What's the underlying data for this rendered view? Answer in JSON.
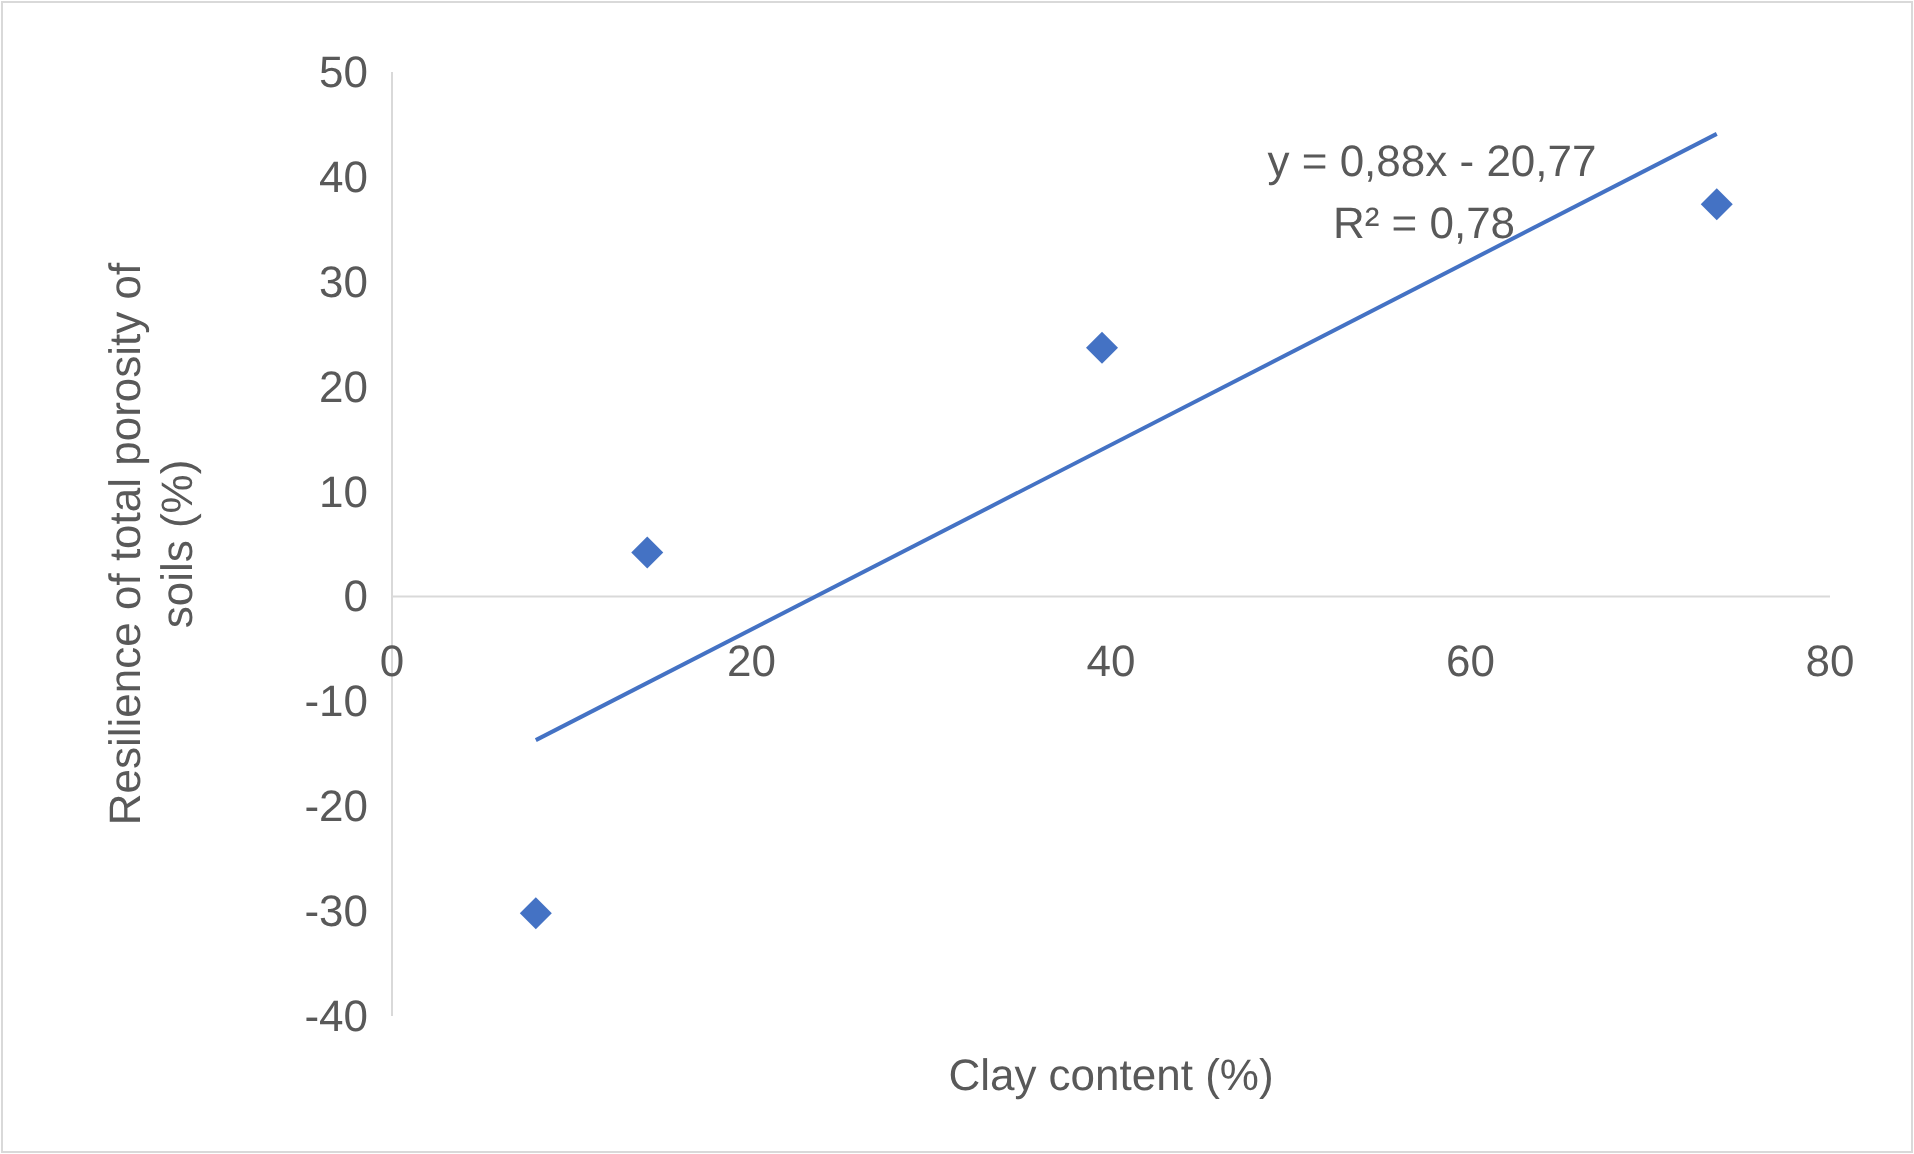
{
  "chart_data": {
    "type": "scatter",
    "xlabel": "Clay content (%)",
    "ylabel": "Resilience of total porosity of soils (%)",
    "x": [
      8,
      14.2,
      39.5,
      73.7
    ],
    "series": [
      {
        "color": "#4472c4",
        "values": [
          -30.2,
          4.2,
          23.7,
          37.4
        ],
        "marker": "diamond"
      },
      {
        "type": "line",
        "color": "#4472c4",
        "x": [
          8,
          73.7
        ],
        "values": [
          -13.7,
          44.1
        ],
        "line_style": "solid"
      }
    ],
    "xlim": [
      0,
      80
    ],
    "xticks": [
      0,
      20,
      40,
      60,
      80
    ],
    "ylim": [
      -40,
      50
    ],
    "yticks": [
      -40,
      -30,
      -20,
      -10,
      0,
      10,
      20,
      30,
      40,
      50
    ],
    "annotations": [
      "y = 0,88x - 20,77",
      "R² = 0,78"
    ],
    "grid": false
  }
}
